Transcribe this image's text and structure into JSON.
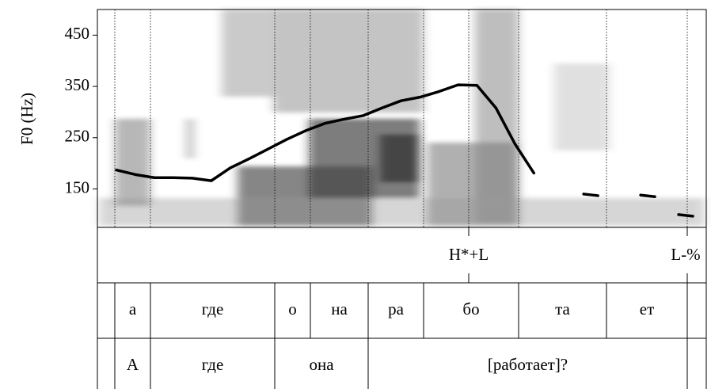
{
  "chart_data": {
    "type": "line",
    "y_label": "F0 (Hz)",
    "ylim": [
      75,
      500
    ],
    "yticks": [
      150,
      250,
      350,
      450
    ],
    "series": [
      {
        "color": "#000000",
        "values": [
          187,
          178,
          172,
          172,
          171,
          166,
          191,
          209,
          228,
          247,
          264,
          278,
          286,
          293,
          308,
          322,
          329,
          340,
          353,
          352,
          308,
          238,
          181,
          null,
          null,
          140,
          null,
          null,
          138,
          null,
          100,
          null
        ]
      }
    ],
    "tones": [
      "H*+L",
      "L-%"
    ],
    "syllables": [
      "а",
      "где",
      "о",
      "на",
      "ра",
      "бо",
      "та",
      "ет"
    ],
    "words": [
      "А",
      "где",
      "она",
      "[работает]?"
    ]
  }
}
